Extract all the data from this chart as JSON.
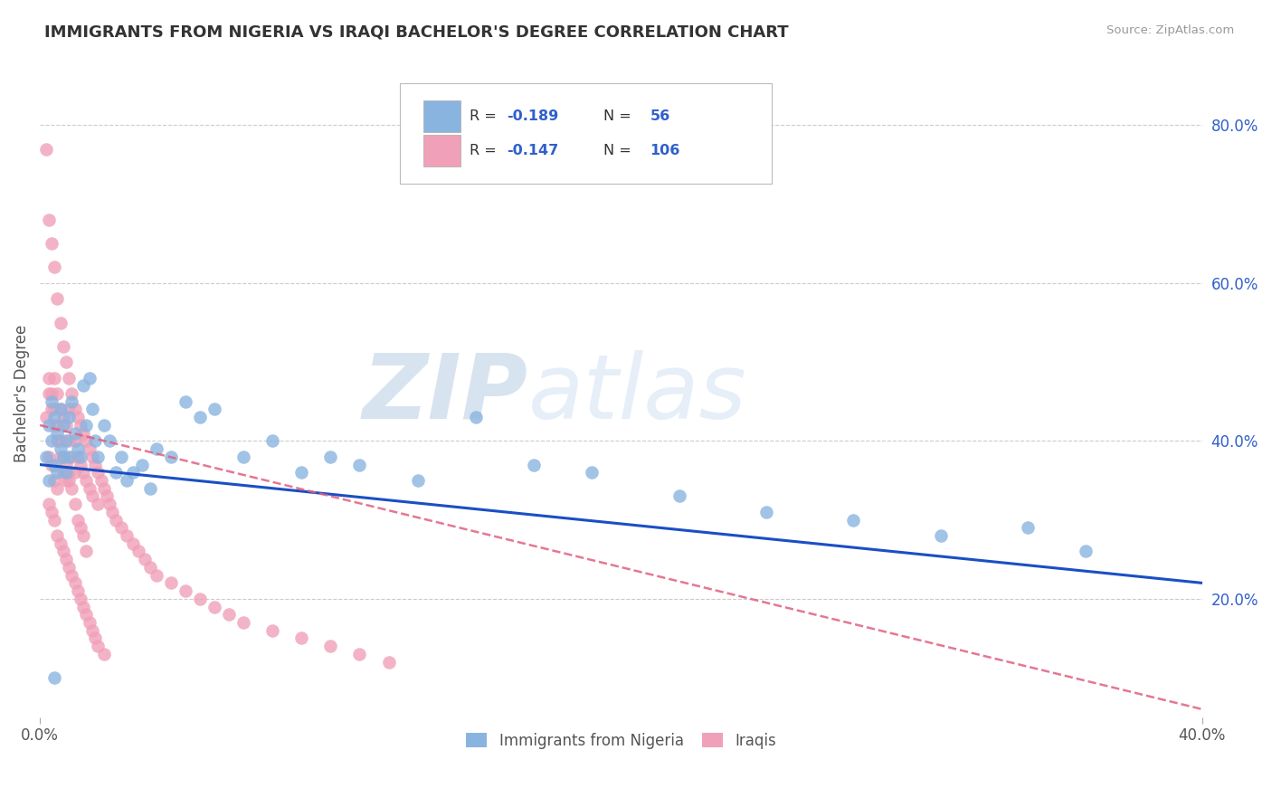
{
  "title": "IMMIGRANTS FROM NIGERIA VS IRAQI BACHELOR'S DEGREE CORRELATION CHART",
  "source": "Source: ZipAtlas.com",
  "ylabel": "Bachelor's Degree",
  "ylabel_right_ticks": [
    "80.0%",
    "60.0%",
    "40.0%",
    "20.0%"
  ],
  "ylabel_right_vals": [
    0.8,
    0.6,
    0.4,
    0.2
  ],
  "x_min": 0.0,
  "x_max": 0.4,
  "y_min": 0.05,
  "y_max": 0.87,
  "blue_color": "#8ab4e0",
  "pink_color": "#f0a0b8",
  "blue_line_color": "#1a4fc4",
  "pink_line_color": "#e06080",
  "legend_label1": "Immigrants from Nigeria",
  "legend_label2": "Iraqis",
  "watermark": "ZIPatlas",
  "grid_color": "#cccccc",
  "title_fontsize": 13,
  "legend_value_color": "#3060cc",
  "blue_scatter_x": [
    0.002,
    0.003,
    0.003,
    0.004,
    0.004,
    0.005,
    0.005,
    0.006,
    0.006,
    0.007,
    0.007,
    0.008,
    0.008,
    0.009,
    0.009,
    0.01,
    0.01,
    0.011,
    0.012,
    0.013,
    0.014,
    0.015,
    0.016,
    0.017,
    0.018,
    0.019,
    0.02,
    0.022,
    0.024,
    0.026,
    0.028,
    0.03,
    0.032,
    0.035,
    0.038,
    0.04,
    0.045,
    0.05,
    0.055,
    0.06,
    0.07,
    0.08,
    0.09,
    0.1,
    0.11,
    0.13,
    0.15,
    0.17,
    0.19,
    0.22,
    0.25,
    0.28,
    0.31,
    0.34,
    0.36,
    0.005
  ],
  "blue_scatter_y": [
    0.38,
    0.42,
    0.35,
    0.4,
    0.45,
    0.37,
    0.43,
    0.41,
    0.36,
    0.39,
    0.44,
    0.38,
    0.42,
    0.36,
    0.4,
    0.43,
    0.38,
    0.45,
    0.41,
    0.39,
    0.38,
    0.47,
    0.42,
    0.48,
    0.44,
    0.4,
    0.38,
    0.42,
    0.4,
    0.36,
    0.38,
    0.35,
    0.36,
    0.37,
    0.34,
    0.39,
    0.38,
    0.45,
    0.43,
    0.44,
    0.38,
    0.4,
    0.36,
    0.38,
    0.37,
    0.35,
    0.43,
    0.37,
    0.36,
    0.33,
    0.31,
    0.3,
    0.28,
    0.29,
    0.26,
    0.1
  ],
  "pink_scatter_x": [
    0.002,
    0.002,
    0.003,
    0.003,
    0.003,
    0.004,
    0.004,
    0.004,
    0.005,
    0.005,
    0.005,
    0.005,
    0.006,
    0.006,
    0.006,
    0.006,
    0.007,
    0.007,
    0.007,
    0.008,
    0.008,
    0.008,
    0.009,
    0.009,
    0.009,
    0.01,
    0.01,
    0.01,
    0.01,
    0.011,
    0.011,
    0.012,
    0.012,
    0.012,
    0.013,
    0.013,
    0.014,
    0.014,
    0.015,
    0.015,
    0.016,
    0.016,
    0.017,
    0.017,
    0.018,
    0.018,
    0.019,
    0.02,
    0.02,
    0.021,
    0.022,
    0.023,
    0.024,
    0.025,
    0.026,
    0.028,
    0.03,
    0.032,
    0.034,
    0.036,
    0.038,
    0.04,
    0.045,
    0.05,
    0.055,
    0.06,
    0.065,
    0.07,
    0.08,
    0.09,
    0.1,
    0.11,
    0.12,
    0.003,
    0.004,
    0.005,
    0.006,
    0.007,
    0.008,
    0.009,
    0.01,
    0.011,
    0.012,
    0.013,
    0.014,
    0.015,
    0.016,
    0.003,
    0.004,
    0.005,
    0.006,
    0.007,
    0.008,
    0.009,
    0.01,
    0.011,
    0.012,
    0.013,
    0.014,
    0.015,
    0.016,
    0.017,
    0.018,
    0.019,
    0.02,
    0.022
  ],
  "pink_scatter_y": [
    0.77,
    0.43,
    0.68,
    0.46,
    0.38,
    0.65,
    0.44,
    0.37,
    0.62,
    0.48,
    0.42,
    0.35,
    0.58,
    0.46,
    0.4,
    0.34,
    0.55,
    0.44,
    0.38,
    0.52,
    0.43,
    0.36,
    0.5,
    0.42,
    0.35,
    0.48,
    0.44,
    0.4,
    0.36,
    0.46,
    0.38,
    0.44,
    0.4,
    0.36,
    0.43,
    0.38,
    0.42,
    0.37,
    0.41,
    0.36,
    0.4,
    0.35,
    0.39,
    0.34,
    0.38,
    0.33,
    0.37,
    0.36,
    0.32,
    0.35,
    0.34,
    0.33,
    0.32,
    0.31,
    0.3,
    0.29,
    0.28,
    0.27,
    0.26,
    0.25,
    0.24,
    0.23,
    0.22,
    0.21,
    0.2,
    0.19,
    0.18,
    0.17,
    0.16,
    0.15,
    0.14,
    0.13,
    0.12,
    0.48,
    0.46,
    0.44,
    0.42,
    0.4,
    0.38,
    0.37,
    0.35,
    0.34,
    0.32,
    0.3,
    0.29,
    0.28,
    0.26,
    0.32,
    0.31,
    0.3,
    0.28,
    0.27,
    0.26,
    0.25,
    0.24,
    0.23,
    0.22,
    0.21,
    0.2,
    0.19,
    0.18,
    0.17,
    0.16,
    0.15,
    0.14,
    0.13
  ]
}
